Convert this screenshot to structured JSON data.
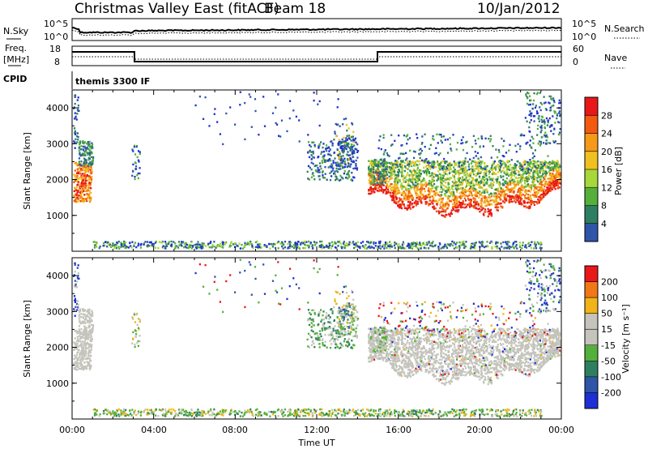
{
  "header": {
    "station": "Christmas Valley East (fitACF)",
    "beam": "Beam 18",
    "date": "10/Jan/2012"
  },
  "top_panels": {
    "nsky_label": "N.Sky",
    "nsky_ticks": [
      "10^5",
      "10^0"
    ],
    "nsearch_label": "N.Search",
    "nsearch_ticks": [
      "10^5",
      "10^0"
    ],
    "freq_label_1": "Freq.",
    "freq_label_2": "[MHz]",
    "freq_ticks": [
      "18",
      "8"
    ],
    "nave_label": "Nave",
    "nave_ticks": [
      "60",
      "0"
    ],
    "cpid_label": "CPID",
    "cpid_value": "themis 3300 IF"
  },
  "colors": {
    "power_scale": [
      "#1e2fd6",
      "#2f55a8",
      "#2e7f62",
      "#54b03a",
      "#a6d83a",
      "#f0c020",
      "#f59a18",
      "#f25a10",
      "#e81818"
    ],
    "velocity_scale": [
      "#1e2fd6",
      "#2f55a8",
      "#2e7f62",
      "#54b03a",
      "#c4c4bc",
      "#c4c4bc",
      "#f0b418",
      "#f07818",
      "#e81818"
    ]
  },
  "chart_data": [
    {
      "type": "heatmap",
      "name": "power",
      "ylabel": "Slant Range [km]",
      "yticks": [
        "1000",
        "2000",
        "3000",
        "4000"
      ],
      "ylim": [
        0,
        4500
      ],
      "colorbar_label": "Power [dB]",
      "colorbar_ticks": [
        "4",
        "8",
        "12",
        "16",
        "20",
        "24",
        "28"
      ],
      "colorbar_range": [
        0,
        32
      ]
    },
    {
      "type": "heatmap",
      "name": "velocity",
      "ylabel": "Slant Range [km]",
      "yticks": [
        "1000",
        "2000",
        "3000",
        "4000"
      ],
      "ylim": [
        0,
        4500
      ],
      "colorbar_label": "Velocity [m s⁻¹]",
      "colorbar_ticks": [
        "200",
        "100",
        "50",
        "15",
        "-15",
        "-50",
        "-100",
        "-200"
      ]
    }
  ],
  "x_axis": {
    "xlabel": "Time UT",
    "ticks": [
      "00:00",
      "04:00",
      "08:00",
      "12:00",
      "16:00",
      "20:00",
      "00:00"
    ],
    "xlim_hours": [
      0,
      24
    ]
  }
}
